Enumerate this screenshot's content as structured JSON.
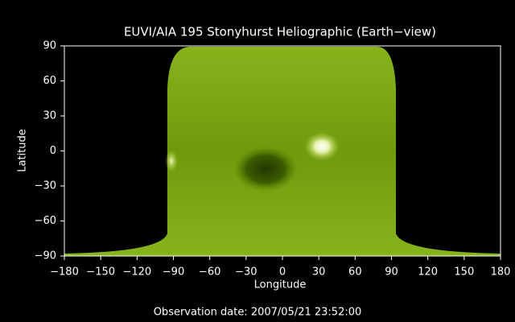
{
  "chart_data": {
    "type": "image",
    "title": "EUVI/AIA 195 Stonyhurst Heliographic (Earth−view)",
    "xlabel": "Longitude",
    "ylabel": "Latitude",
    "annotation": "Observation date: 2007/05/21 23:52:00",
    "xlim": [
      -180,
      180
    ],
    "ylim": [
      -90,
      90
    ],
    "xticks": [
      {
        "value": -180,
        "label": "−180"
      },
      {
        "value": -150,
        "label": "−150"
      },
      {
        "value": -120,
        "label": "−120"
      },
      {
        "value": -90,
        "label": "−90"
      },
      {
        "value": -60,
        "label": "−60"
      },
      {
        "value": -30,
        "label": "−30"
      },
      0,
      30,
      60,
      90,
      120,
      150,
      180
    ],
    "yticks": [
      {
        "value": -90,
        "label": "−90"
      },
      {
        "value": -60,
        "label": "−60"
      },
      {
        "value": -30,
        "label": "−30"
      },
      0,
      30,
      60,
      90
    ]
  }
}
